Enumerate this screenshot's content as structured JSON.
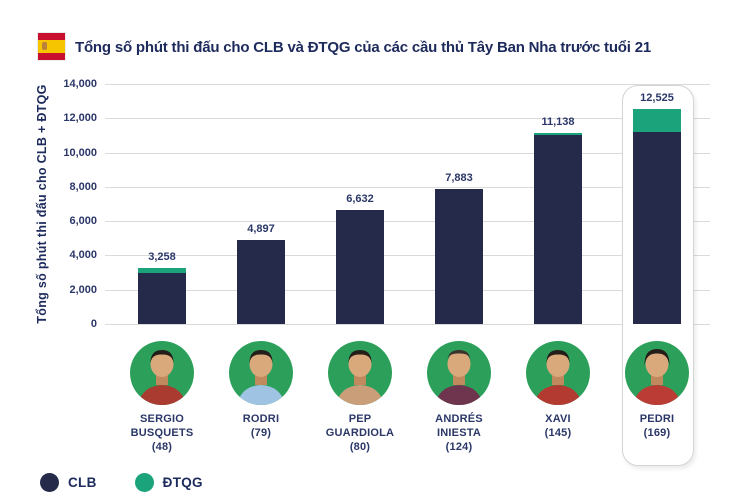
{
  "colors": {
    "clb": "#252a4a",
    "dtqg": "#1ba47c",
    "text": "#2b3768",
    "title": "#1d2a5c",
    "gridline": "#dadada",
    "avatar_bg": "#2ca05a",
    "highlight_border": "#d4d4d4",
    "flag_red": "#c8102e",
    "flag_yellow": "#f6c500"
  },
  "chart_data": {
    "type": "bar",
    "stacked": true,
    "title": "Tổng số phút thi đấu cho CLB và ĐTQG của các cầu thủ Tây Ban Nha trước tuổi 21",
    "ylabel": "Tổng số phút thi đấu cho CLB + ĐTQG",
    "ylim": [
      0,
      14000
    ],
    "grid": true,
    "ytick_labels": [
      "0",
      "2,000",
      "4,000",
      "6,000",
      "8,000",
      "10,000",
      "12,000",
      "14,000"
    ],
    "categories": [
      "SERGIO BUSQUETS (48)",
      "RODRI (79)",
      "PEP GUARDIOLA (80)",
      "ANDRÉS INIESTA (124)",
      "XAVI (145)",
      "PEDRI (169)"
    ],
    "totals": [
      3258,
      4897,
      6632,
      7883,
      11138,
      12525
    ],
    "total_labels": [
      "3,258",
      "4,897",
      "6,632",
      "7,883",
      "11,138",
      "12,525"
    ],
    "series": [
      {
        "name": "CLB",
        "values_est": [
          2968,
          4897,
          6632,
          7883,
          11018,
          11185
        ]
      },
      {
        "name": "ĐTQG",
        "values_est": [
          290,
          0,
          0,
          0,
          120,
          1340
        ]
      }
    ],
    "highlight_index": 5,
    "legend_position": "bottom-left"
  },
  "players": [
    {
      "name": "SERGIO BUSQUETS",
      "caps": "(48)",
      "shirt": "#a93b30"
    },
    {
      "name": "RODRI",
      "caps": "(79)",
      "shirt": "#9fc3e2"
    },
    {
      "name": "PEP GUARDIOLA",
      "caps": "(80)",
      "shirt": "#c99e79"
    },
    {
      "name": "ANDRÉS INIESTA",
      "caps": "(124)",
      "shirt": "#70354e"
    },
    {
      "name": "XAVI",
      "caps": "(145)",
      "shirt": "#b23a31"
    },
    {
      "name": "PEDRI",
      "caps": "(169)",
      "shirt": "#bb3b35"
    }
  ],
  "legend": {
    "items": [
      {
        "label": "CLB",
        "color": "#252a4a"
      },
      {
        "label": "ĐTQG",
        "color": "#1ba47c"
      }
    ]
  }
}
